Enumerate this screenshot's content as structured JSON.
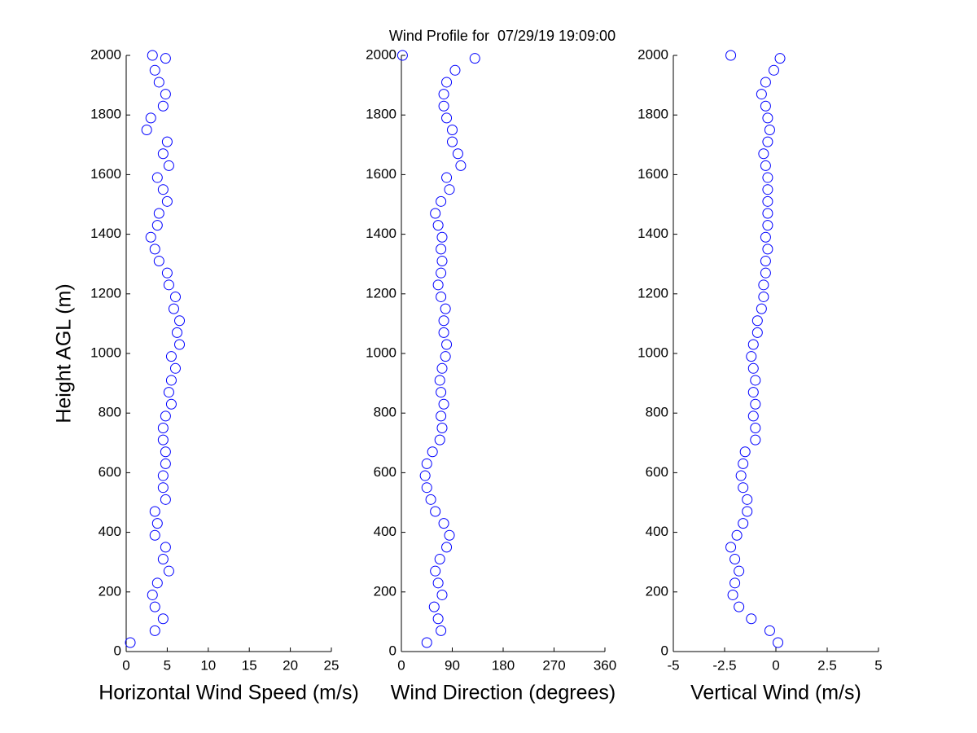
{
  "chart_data": [
    {
      "type": "scatter",
      "title": "Wind Profile for  07/29/19 19:09:00",
      "ylabel": "Height AGL (m)",
      "xlabel": "Horizontal Wind Speed (m/s)",
      "color": "#0000ff",
      "xlim": [
        0,
        25
      ],
      "xticks": [
        0,
        5,
        10,
        15,
        20,
        25
      ],
      "ylim": [
        0,
        2000
      ],
      "yticks": [
        0,
        200,
        400,
        600,
        800,
        1000,
        1200,
        1400,
        1600,
        1800,
        2000
      ],
      "x": [
        0.5,
        3.5,
        4.5,
        3.5,
        3.2,
        3.8,
        5.2,
        4.5,
        4.8,
        3.5,
        3.8,
        3.5,
        4.8,
        4.5,
        4.5,
        4.8,
        4.8,
        4.5,
        4.5,
        4.8,
        5.5,
        5.2,
        5.5,
        6.0,
        5.5,
        6.5,
        6.2,
        6.5,
        5.8,
        6.0,
        5.2,
        5.0,
        4.0,
        3.5,
        3.0,
        3.8,
        4.0,
        5.0,
        4.5,
        3.8,
        5.2,
        4.5,
        5.0,
        2.5,
        3.0,
        4.5,
        4.8,
        4.0,
        3.5,
        4.8,
        3.2
      ],
      "y": [
        30,
        70,
        110,
        150,
        190,
        230,
        270,
        310,
        350,
        390,
        430,
        470,
        510,
        550,
        590,
        630,
        670,
        710,
        750,
        790,
        830,
        870,
        910,
        950,
        990,
        1030,
        1070,
        1110,
        1150,
        1190,
        1230,
        1270,
        1310,
        1350,
        1390,
        1430,
        1470,
        1510,
        1550,
        1590,
        1630,
        1670,
        1710,
        1750,
        1790,
        1830,
        1870,
        1910,
        1950,
        1990,
        2000
      ]
    },
    {
      "type": "scatter",
      "xlabel": "Wind Direction (degrees)",
      "color": "#0000ff",
      "xlim": [
        0,
        360
      ],
      "xticks": [
        0,
        90,
        180,
        270,
        360
      ],
      "ylim": [
        0,
        2000
      ],
      "yticks": [
        0,
        200,
        400,
        600,
        800,
        1000,
        1200,
        1400,
        1600,
        1800,
        2000
      ],
      "x": [
        45,
        70,
        65,
        58,
        72,
        65,
        60,
        68,
        80,
        85,
        75,
        60,
        52,
        45,
        42,
        45,
        55,
        68,
        72,
        70,
        75,
        70,
        68,
        72,
        78,
        80,
        75,
        75,
        78,
        70,
        65,
        70,
        72,
        70,
        72,
        65,
        60,
        70,
        85,
        80,
        105,
        100,
        90,
        90,
        80,
        75,
        75,
        80,
        95,
        130,
        2
      ],
      "y": [
        30,
        70,
        110,
        150,
        190,
        230,
        270,
        310,
        350,
        390,
        430,
        470,
        510,
        550,
        590,
        630,
        670,
        710,
        750,
        790,
        830,
        870,
        910,
        950,
        990,
        1030,
        1070,
        1110,
        1150,
        1190,
        1230,
        1270,
        1310,
        1350,
        1390,
        1430,
        1470,
        1510,
        1550,
        1590,
        1630,
        1670,
        1710,
        1750,
        1790,
        1830,
        1870,
        1910,
        1950,
        1990,
        2000
      ]
    },
    {
      "type": "scatter",
      "xlabel": "Vertical Wind (m/s)",
      "color": "#0000ff",
      "xlim": [
        -5,
        5
      ],
      "xticks": [
        -5,
        -2.5,
        0,
        2.5,
        5
      ],
      "ylim": [
        0,
        2000
      ],
      "yticks": [
        0,
        200,
        400,
        600,
        800,
        1000,
        1200,
        1400,
        1600,
        1800,
        2000
      ],
      "x": [
        0.1,
        -0.3,
        -1.2,
        -1.8,
        -2.1,
        -2.0,
        -1.8,
        -2.0,
        -2.2,
        -1.9,
        -1.6,
        -1.4,
        -1.4,
        -1.6,
        -1.7,
        -1.6,
        -1.5,
        -1.0,
        -1.0,
        -1.1,
        -1.0,
        -1.1,
        -1.0,
        -1.1,
        -1.2,
        -1.1,
        -0.9,
        -0.9,
        -0.7,
        -0.6,
        -0.6,
        -0.5,
        -0.5,
        -0.4,
        -0.5,
        -0.4,
        -0.4,
        -0.4,
        -0.4,
        -0.4,
        -0.5,
        -0.6,
        -0.4,
        -0.3,
        -0.4,
        -0.5,
        -0.7,
        -0.5,
        -0.1,
        0.2,
        -2.2
      ],
      "y": [
        30,
        70,
        110,
        150,
        190,
        230,
        270,
        310,
        350,
        390,
        430,
        470,
        510,
        550,
        590,
        630,
        670,
        710,
        750,
        790,
        830,
        870,
        910,
        950,
        990,
        1030,
        1070,
        1110,
        1150,
        1190,
        1230,
        1270,
        1310,
        1350,
        1390,
        1430,
        1470,
        1510,
        1550,
        1590,
        1630,
        1670,
        1710,
        1750,
        1790,
        1830,
        1870,
        1910,
        1950,
        1990,
        2000
      ]
    }
  ]
}
